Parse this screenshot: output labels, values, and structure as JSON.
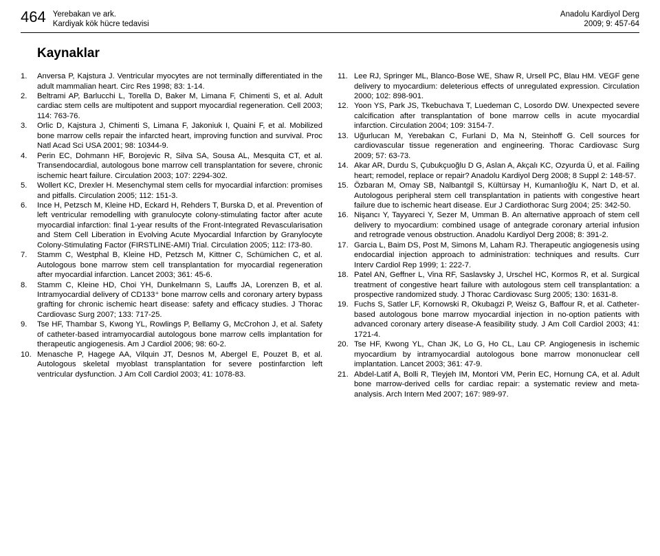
{
  "header": {
    "page_number": "464",
    "authors_line": "Yerebakan ve ark.",
    "subject_line": "Kardiyak kök hücre tedavisi",
    "journal_line": "Anadolu Kardiyol Derg",
    "issue_line": "2009; 9: 457-64"
  },
  "section_title": "Kaynaklar",
  "refs_left": [
    {
      "n": "1.",
      "t": "Anversa P, Kajstura J. Ventricular myocytes are not terminally differentiated in the adult mammalian heart. Circ Res 1998; 83: 1-14."
    },
    {
      "n": "2.",
      "t": "Beltrami AP, Barlucchi L, Torella D, Baker M, Limana F, Chimenti S, et al. Adult cardiac stem cells are multipotent and support myocardial regeneration. Cell 2003; 114: 763-76."
    },
    {
      "n": "3.",
      "t": "Orlic D, Kajstura J, Chimenti S, Limana F, Jakoniuk I, Quaini F, et al. Mobilized bone marrow cells repair the infarcted heart, improving function and survival. Proc Natl Acad Sci USA 2001; 98: 10344-9."
    },
    {
      "n": "4.",
      "t": "Perin EC, Dohmann HF, Borojevic R, Silva SA, Sousa AL, Mesquita CT, et al. Transendocardial, autologous bone marrow cell transplantation for severe, chronic ischemic heart failure. Circulation 2003; 107: 2294-302."
    },
    {
      "n": "5.",
      "t": "Wollert KC, Drexler H. Mesenchymal stem cells for myocardial infarction: promises and pitfalls. Circulation 2005; 112: 151-3."
    },
    {
      "n": "6.",
      "t": "Ince H, Petzsch M, Kleine HD, Eckard H, Rehders T, Burska D, et al. Prevention of left ventricular remodelling with granulocyte colony-stimulating factor after acute myocardial infarction: final 1-year results of the Front-Integrated Revascularisation and Stem Cell Liberation in Evolving Acute Myocardial Infarction by Granylocyte Colony-Stimulating Factor (FIRSTLINE-AMI) Trial. Circulation 2005; 112: I73-80."
    },
    {
      "n": "7.",
      "t": "Stamm C, Westphal B, Kleine HD, Petzsch M, Kittner C, Schümichen C, et al. Autologous bone marrow stem cell transplantation for myocardial regeneration after myocardial infarction. Lancet 2003; 361: 45-6."
    },
    {
      "n": "8.",
      "t": "Stamm C, Kleine HD, Choi YH, Dunkelmann S, Lauffs JA, Lorenzen B, et al. Intramyocardial delivery of CD133⁺ bone marrow cells and coronary artery bypass grafting for chronic ischemic heart disease: safety and efficacy studies. J Thorac Cardiovasc Surg 2007; 133: 717-25."
    },
    {
      "n": "9.",
      "t": "Tse HF, Thambar S, Kwong YL, Rowlings P, Bellamy G, McCrohon J, et al. Safety of catheter-based intramyocardial autologous bone marrow cells implantation for therapeutic angiogenesis. Am J Cardiol 2006; 98: 60-2."
    },
    {
      "n": "10.",
      "t": "Menasche P, Hagege AA, Vilquin JT, Desnos M, Abergel E, Pouzet B, et al. Autologous skeletal myoblast transplantation for severe postinfarction left ventricular dysfunction. J Am Coll Cardiol 2003; 41: 1078-83."
    }
  ],
  "refs_right": [
    {
      "n": "11.",
      "t": "Lee RJ, Springer ML, Blanco-Bose WE, Shaw R, Ursell PC, Blau HM. VEGF gene delivery to myocardium: deleterious effects of unregulated expression. Circulation 2000; 102: 898-901."
    },
    {
      "n": "12.",
      "t": "Yoon YS, Park JS, Tkebuchava T, Luedeman C, Losordo DW. Unexpected severe calcification after transplantation of bone marrow cells in acute myocardial infarction. Circulation 2004; 109: 3154-7."
    },
    {
      "n": "13.",
      "t": "Uğurlucan M, Yerebakan C, Furlani D, Ma N, Steinhoff G. Cell sources for cardiovascular tissue regeneration and engineering. Thorac Cardiovasc Surg 2009; 57: 63-73."
    },
    {
      "n": "14.",
      "t": "Akar AR, Durdu S, Çubukçuoğlu D G, Aslan A, Akçalı KC, Ozyurda Ü, et al. Failing heart; remodel, replace or repair? Anadolu Kardiyol Derg 2008; 8 Suppl 2: 148-57."
    },
    {
      "n": "15.",
      "t": "Özbaran M, Omay SB, Nalbantgil S, Kültürsay H, Kumanlıoğlu K, Nart D, et al. Autologous peripheral stem cell transplantation in patients with congestive heart failure due to ischemic heart disease. Eur J Cardiothorac Surg 2004; 25: 342-50."
    },
    {
      "n": "16.",
      "t": "Nişancı Y, Tayyareci Y, Sezer M, Umman B. An alternative approach of stem cell delivery to myocardium: combined usage of antegrade coronary arterial infusion and retrograde venous obstruction. Anadolu Kardiyol Derg 2008; 8: 391-2."
    },
    {
      "n": "17.",
      "t": "Garcia L, Baim DS, Post M, Simons M, Laham RJ. Therapeutic angiogenesis using endocardial injection approach to administration: techniques and results. Curr Interv Cardiol Rep 1999; 1: 222-7."
    },
    {
      "n": "18.",
      "t": "Patel AN, Geffner L, Vina RF, Saslavsky J, Urschel HC, Kormos R, et al. Surgical treatment of congestive heart failure with autologous stem cell transplantation: a prospective randomized study. J Thorac Cardiovasc Surg 2005; 130: 1631-8."
    },
    {
      "n": "19.",
      "t": "Fuchs S, Satler LF, Kornowski R, Okubagzi P, Weisz G, Baffour R, et al. Catheter-based autologous bone marrow myocardial injection in no-option patients with advanced coronary artery disease-A feasibility study. J Am Coll Cardiol 2003; 41: 1721-4."
    },
    {
      "n": "20.",
      "t": "Tse HF, Kwong YL, Chan JK, Lo G, Ho CL, Lau CP. Angiogenesis in ischemic myocardium by intramyocardial autologous bone marrow mononuclear cell implantation. Lancet 2003; 361: 47-9."
    },
    {
      "n": "21.",
      "t": "Abdel-Latif A, Bolli R, Tleyjeh IM, Montori VM, Perin EC, Hornung CA, et al. Adult bone marrow-derived cells for cardiac repair: a systematic review and meta-analysis. Arch Intern Med 2007; 167: 989-97."
    }
  ]
}
